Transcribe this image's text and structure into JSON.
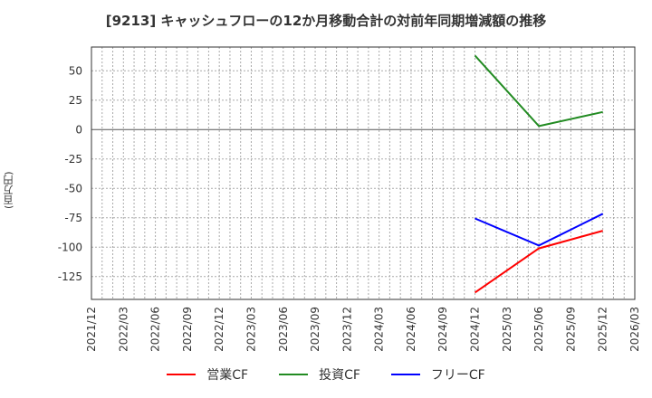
{
  "title": "[9213]  キャッシュフローの12か月移動合計の対前年同期増減額の推移",
  "chart_data": {
    "type": "line",
    "title": "[9213]  キャッシュフローの12か月移動合計の対前年同期増減額の推移",
    "xlabel": "",
    "ylabel": "(百万円)",
    "ylim": [
      -143,
      70
    ],
    "yticks": [
      50,
      25,
      0,
      -25,
      -50,
      -75,
      -100,
      -125
    ],
    "xticks": [
      "2021/12",
      "2022/03",
      "2022/06",
      "2022/09",
      "2022/12",
      "2023/03",
      "2023/06",
      "2023/09",
      "2023/12",
      "2024/03",
      "2024/06",
      "2024/09",
      "2024/12",
      "2025/03",
      "2025/06",
      "2025/09",
      "2025/12",
      "2026/03"
    ],
    "x": [
      "2024/12",
      "2025/06",
      "2025/12"
    ],
    "grid": true,
    "legend_position": "bottom",
    "series": [
      {
        "name": "営業CF",
        "color": "#ff0000",
        "values": [
          -138.5,
          -101,
          -86
        ]
      },
      {
        "name": "投資CF",
        "color": "#228b22",
        "values": [
          63,
          3,
          15
        ]
      },
      {
        "name": "フリーCF",
        "color": "#0000ff",
        "values": [
          -75.5,
          -98.5,
          -71.5
        ]
      }
    ]
  }
}
